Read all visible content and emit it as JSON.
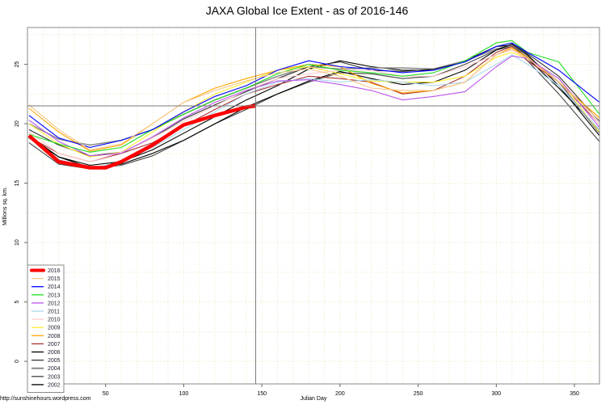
{
  "chart_data": {
    "type": "line",
    "title": "JAXA Global Ice Extent - as of 2016-146",
    "xlabel": "Julian Day",
    "ylabel": "Millions sq. km.",
    "credit": "http://sunshinehours.wordpress.com",
    "xlim": [
      0,
      366
    ],
    "ylim": [
      -1.9,
      28.1
    ],
    "xticks": [
      50,
      100,
      150,
      200,
      250,
      300,
      350
    ],
    "yticks": [
      0,
      5,
      10,
      15,
      20,
      25
    ],
    "grid": true,
    "legend_position": "bottom-left",
    "reference_lines": {
      "day": 146,
      "value": 21.5
    },
    "x": [
      1,
      20,
      40,
      60,
      80,
      100,
      120,
      140,
      160,
      180,
      200,
      220,
      240,
      260,
      280,
      300,
      310,
      320,
      340,
      366
    ],
    "series": [
      {
        "name": "2016",
        "color": "#ff0000",
        "x": [
          1,
          20,
          40,
          50,
          60,
          80,
          100,
          120,
          140,
          146
        ],
        "values": [
          19.0,
          16.8,
          16.3,
          16.3,
          16.8,
          18.2,
          19.9,
          20.7,
          21.4,
          21.5
        ]
      },
      {
        "name": "2015",
        "color": "#f5c78a",
        "values": [
          21.6,
          19.5,
          17.8,
          18.3,
          20,
          21.8,
          22.8,
          23.6,
          24.3,
          24.6,
          24,
          23,
          22.8,
          22.8,
          23.5,
          25.8,
          26.3,
          25.5,
          23.5,
          20.3
        ]
      },
      {
        "name": "2014",
        "color": "#0000ff",
        "values": [
          20.7,
          18.8,
          18,
          18.6,
          19.5,
          21,
          22.3,
          23.2,
          24.5,
          25.3,
          24.8,
          24.6,
          24.3,
          24.5,
          25.2,
          26.5,
          26.8,
          26,
          24.5,
          21.8
        ]
      },
      {
        "name": "2013",
        "color": "#22dd22",
        "values": [
          19.1,
          18.3,
          17.6,
          18,
          19.5,
          20.8,
          22,
          23,
          24.2,
          25,
          24.5,
          24.3,
          24,
          24.3,
          25.3,
          26.8,
          27,
          26,
          25.2,
          20.8
        ]
      },
      {
        "name": "2012",
        "color": "#bb55ee",
        "values": [
          20.3,
          18.5,
          17.3,
          17.5,
          18.9,
          20.5,
          21.8,
          22.8,
          23.6,
          23.7,
          23.3,
          22.8,
          22,
          22.3,
          22.7,
          24.8,
          25.7,
          25.5,
          23.8,
          19.7
        ]
      },
      {
        "name": "2011",
        "color": "#aad8ee",
        "values": [
          19,
          17,
          16.2,
          16.8,
          18,
          19.5,
          21,
          22.5,
          23.5,
          23.8,
          23.5,
          23.7,
          23.5,
          23.2,
          23.5,
          25,
          25.8,
          25,
          23.2,
          19.5
        ]
      },
      {
        "name": "2010",
        "color": "#ffcccc",
        "values": [
          19.3,
          17.5,
          16.8,
          17.6,
          18.8,
          20.2,
          21.5,
          22.8,
          23.8,
          24.2,
          24.5,
          24.5,
          24,
          24,
          24.8,
          25.8,
          26.2,
          25.5,
          23.8,
          20
        ]
      },
      {
        "name": "2009",
        "color": "#ffee33",
        "values": [
          20,
          18.3,
          17.2,
          17.6,
          19.3,
          21,
          22.5,
          23.5,
          24.5,
          24.8,
          24.2,
          23.6,
          23.5,
          23.5,
          24,
          25.6,
          26,
          25.5,
          23.8,
          19.3
        ]
      },
      {
        "name": "2008",
        "color": "#ffa500",
        "values": [
          21.3,
          19.3,
          17.7,
          18.2,
          20,
          21.8,
          23,
          23.8,
          24.5,
          25,
          24.8,
          23.4,
          22.6,
          22.8,
          23.5,
          25.8,
          26.4,
          25.6,
          23.5,
          20.5
        ]
      },
      {
        "name": "2007",
        "color": "#aa3333",
        "values": [
          18.9,
          17.5,
          16.8,
          17.5,
          18.4,
          19.8,
          21.2,
          22.5,
          23.3,
          24,
          23.8,
          23.5,
          22.5,
          22.8,
          24,
          26,
          26.5,
          25.3,
          23.5,
          20
        ]
      },
      {
        "name": "2006",
        "color": "#000000",
        "values": [
          19,
          17.2,
          16.3,
          16.6,
          17.5,
          18.6,
          20,
          21.4,
          22.5,
          23.6,
          24.4,
          23.8,
          23.3,
          23.5,
          24.5,
          26.2,
          26.7,
          25.8,
          23.2,
          19
        ]
      },
      {
        "name": "2005",
        "color": "#333333",
        "values": [
          19.5,
          18.2,
          17.3,
          17.6,
          18.8,
          20.4,
          21.6,
          22.7,
          23.8,
          24.8,
          25.2,
          24.5,
          24.4,
          24.6,
          25.2,
          26.5,
          26.8,
          25.9,
          24,
          20.2
        ]
      },
      {
        "name": "2004",
        "color": "#888888",
        "values": [
          20,
          18.7,
          18.2,
          18.6,
          19.5,
          20.8,
          22,
          23,
          24,
          24.8,
          24.6,
          24.7,
          24.7,
          24.6,
          25.3,
          26.3,
          26.6,
          25.7,
          23.5,
          19.2
        ]
      },
      {
        "name": "2003",
        "color": "#444444",
        "values": [
          18.4,
          16.6,
          16.2,
          16.5,
          17.3,
          18.6,
          20,
          21.2,
          22.5,
          23.5,
          24.3,
          24.2,
          23.8,
          24,
          25,
          26.2,
          26.5,
          25.3,
          22.5,
          18.5
        ]
      },
      {
        "name": "2002",
        "color": "#000000",
        "values": [
          18.8,
          17.2,
          16.5,
          16.8,
          17.8,
          19.2,
          20.6,
          22,
          23.2,
          24.6,
          25.3,
          24.8,
          24.5,
          24.5,
          25.3,
          26.5,
          26.6,
          25.5,
          23,
          19.5
        ]
      }
    ]
  }
}
